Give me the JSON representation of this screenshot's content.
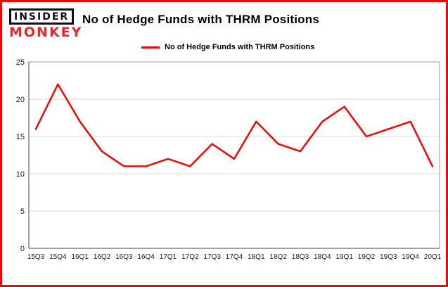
{
  "logo": {
    "top": "INSIDER",
    "bottom": "MONKEY"
  },
  "header": {
    "title": "No of Hedge Funds with THRM Positions"
  },
  "legend": {
    "label": "No of Hedge Funds with THRM Positions"
  },
  "colors": {
    "frame_border": "#f60506",
    "line": "#f60506",
    "logo_red": "#e8262d",
    "grid": "#d8d8d8",
    "plot_border": "#9a9a9a",
    "axis": "#444444",
    "tick_text": "#222222"
  },
  "chart_data": {
    "type": "line",
    "title": "No of Hedge Funds with THRM Positions",
    "categories": [
      "15Q3",
      "15Q4",
      "16Q1",
      "16Q2",
      "16Q3",
      "16Q4",
      "17Q1",
      "17Q2",
      "17Q3",
      "17Q4",
      "18Q1",
      "18Q2",
      "18Q3",
      "18Q4",
      "19Q1",
      "19Q2",
      "19Q3",
      "19Q4",
      "20Q1"
    ],
    "values": [
      16,
      22,
      17,
      13,
      11,
      11,
      12,
      11,
      14,
      12,
      17,
      14,
      13,
      17,
      19,
      15,
      16,
      17,
      11
    ],
    "xlabel": "",
    "ylabel": "",
    "ylim": [
      0,
      25
    ],
    "yticks": [
      0,
      5,
      10,
      15,
      20,
      25
    ],
    "grid": true,
    "legend_position": "top-left",
    "line_color": "#f60506"
  }
}
